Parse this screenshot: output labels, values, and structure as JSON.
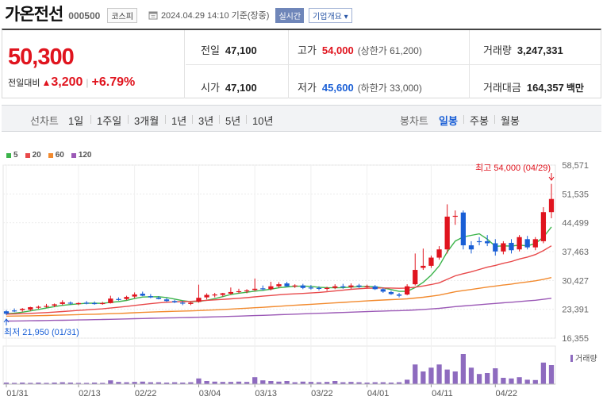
{
  "header": {
    "stock_name": "가온전선",
    "stock_code": "000500",
    "market": "코스피",
    "date": "2024.04.29 14:10 기준(장중)",
    "realtime_label": "실시간",
    "overview_label": "기업개요"
  },
  "price": {
    "current": "50,300",
    "change_label": "전일대비",
    "change": "3,200",
    "change_pct": "+6.79%"
  },
  "summary": {
    "prev_close": {
      "label": "전일",
      "value": "47,100"
    },
    "high": {
      "label": "고가",
      "value": "54,000",
      "sub": "(상한가 61,200)"
    },
    "volume": {
      "label": "거래량",
      "value": "3,247,331"
    },
    "open": {
      "label": "시가",
      "value": "47,100"
    },
    "low": {
      "label": "저가",
      "value": "45,600",
      "sub": "(하한가 33,000)"
    },
    "amount": {
      "label": "거래대금",
      "value": "164,357",
      "unit": "백만"
    }
  },
  "period_tabs": {
    "line_chart": "선차트",
    "line_items": [
      "1일",
      "1주일",
      "3개월",
      "1년",
      "3년",
      "5년",
      "10년"
    ],
    "candle_chart": "봉차트",
    "candle_items": [
      "일봉",
      "주봉",
      "월봉"
    ],
    "selected_candle": "일봉"
  },
  "colors": {
    "up": "#e0141e",
    "down": "#1a5fd6",
    "ma5": "#3cb44b",
    "ma20": "#e8494a",
    "ma60": "#f28a2e",
    "ma120": "#9b59b6",
    "volume": "#8e6bbf"
  },
  "chart_data": {
    "type": "candlestick",
    "legend": [
      {
        "name": "5",
        "color": "#3cb44b"
      },
      {
        "name": "20",
        "color": "#e8494a"
      },
      {
        "name": "60",
        "color": "#f28a2e"
      },
      {
        "name": "120",
        "color": "#9b59b6"
      }
    ],
    "y_ticks": [
      "58,571",
      "51,535",
      "44,499",
      "37,463",
      "30,427",
      "23,391",
      "16,355"
    ],
    "ylim": [
      16355,
      58571
    ],
    "x_ticks": [
      "01/31",
      "02/13",
      "02/22",
      "03/04",
      "03/13",
      "03/22",
      "04/01",
      "04/11",
      "04/22"
    ],
    "annotations": {
      "high": "최고 54,000 (04/29)",
      "low": "최저 21,950 (01/31)"
    },
    "volume_label": "거래량",
    "candles": [
      {
        "o": 22900,
        "h": 23200,
        "l": 21950,
        "c": 22300
      },
      {
        "o": 23100,
        "h": 23600,
        "l": 22700,
        "c": 23000
      },
      {
        "o": 23200,
        "h": 23700,
        "l": 22800,
        "c": 23500
      },
      {
        "o": 23300,
        "h": 24000,
        "l": 23000,
        "c": 23900
      },
      {
        "o": 23900,
        "h": 24300,
        "l": 23500,
        "c": 24000
      },
      {
        "o": 24100,
        "h": 24700,
        "l": 23800,
        "c": 24200
      },
      {
        "o": 24300,
        "h": 24800,
        "l": 23900,
        "c": 24600
      },
      {
        "o": 24700,
        "h": 25600,
        "l": 24400,
        "c": 25100
      },
      {
        "o": 25000,
        "h": 25300,
        "l": 24500,
        "c": 24800
      },
      {
        "o": 24800,
        "h": 25100,
        "l": 24400,
        "c": 24900
      },
      {
        "o": 25000,
        "h": 25400,
        "l": 24600,
        "c": 24900
      },
      {
        "o": 24900,
        "h": 25300,
        "l": 24500,
        "c": 24700
      },
      {
        "o": 24800,
        "h": 25200,
        "l": 24500,
        "c": 24900
      },
      {
        "o": 24900,
        "h": 26700,
        "l": 24800,
        "c": 26000
      },
      {
        "o": 25900,
        "h": 26300,
        "l": 25500,
        "c": 25800
      },
      {
        "o": 25900,
        "h": 26700,
        "l": 25600,
        "c": 26400
      },
      {
        "o": 26500,
        "h": 27500,
        "l": 26100,
        "c": 27000
      },
      {
        "o": 27200,
        "h": 27700,
        "l": 26600,
        "c": 26700
      },
      {
        "o": 26600,
        "h": 27100,
        "l": 26100,
        "c": 26300
      },
      {
        "o": 26200,
        "h": 26600,
        "l": 25800,
        "c": 25900
      },
      {
        "o": 25800,
        "h": 26200,
        "l": 25200,
        "c": 25400
      },
      {
        "o": 25400,
        "h": 25700,
        "l": 24900,
        "c": 25100
      },
      {
        "o": 25000,
        "h": 25400,
        "l": 24400,
        "c": 24800
      },
      {
        "o": 24700,
        "h": 25200,
        "l": 24400,
        "c": 25000
      },
      {
        "o": 25200,
        "h": 29400,
        "l": 25000,
        "c": 26200
      },
      {
        "o": 26300,
        "h": 27300,
        "l": 25800,
        "c": 26900
      },
      {
        "o": 26800,
        "h": 27400,
        "l": 26300,
        "c": 27000
      },
      {
        "o": 26900,
        "h": 27400,
        "l": 26500,
        "c": 27300
      },
      {
        "o": 27200,
        "h": 28700,
        "l": 26900,
        "c": 27600
      },
      {
        "o": 27700,
        "h": 28400,
        "l": 27300,
        "c": 27800
      },
      {
        "o": 27800,
        "h": 28300,
        "l": 27300,
        "c": 28000
      },
      {
        "o": 28100,
        "h": 30900,
        "l": 27800,
        "c": 28400
      },
      {
        "o": 28500,
        "h": 29200,
        "l": 28000,
        "c": 28300
      },
      {
        "o": 28300,
        "h": 30100,
        "l": 28000,
        "c": 29000
      },
      {
        "o": 29000,
        "h": 30000,
        "l": 28600,
        "c": 29500
      },
      {
        "o": 29700,
        "h": 30100,
        "l": 28900,
        "c": 29000
      },
      {
        "o": 29000,
        "h": 29500,
        "l": 28600,
        "c": 29200
      },
      {
        "o": 29200,
        "h": 29600,
        "l": 28300,
        "c": 28600
      },
      {
        "o": 28700,
        "h": 29300,
        "l": 28200,
        "c": 28600
      },
      {
        "o": 28600,
        "h": 29000,
        "l": 28000,
        "c": 28400
      },
      {
        "o": 28400,
        "h": 28900,
        "l": 27900,
        "c": 28600
      },
      {
        "o": 28600,
        "h": 29500,
        "l": 28300,
        "c": 29000
      },
      {
        "o": 29000,
        "h": 29600,
        "l": 28400,
        "c": 28800
      },
      {
        "o": 28800,
        "h": 29700,
        "l": 28400,
        "c": 29200
      },
      {
        "o": 29200,
        "h": 29600,
        "l": 28600,
        "c": 28900
      },
      {
        "o": 28900,
        "h": 29400,
        "l": 28500,
        "c": 29000
      },
      {
        "o": 29000,
        "h": 29300,
        "l": 28100,
        "c": 28300
      },
      {
        "o": 28300,
        "h": 28600,
        "l": 27400,
        "c": 27700
      },
      {
        "o": 27600,
        "h": 27900,
        "l": 26900,
        "c": 27100
      },
      {
        "o": 27000,
        "h": 27400,
        "l": 26300,
        "c": 26700
      },
      {
        "o": 27000,
        "h": 29500,
        "l": 26800,
        "c": 29000
      },
      {
        "o": 29500,
        "h": 37000,
        "l": 29200,
        "c": 33000
      },
      {
        "o": 33500,
        "h": 38200,
        "l": 33000,
        "c": 34000
      },
      {
        "o": 34000,
        "h": 36500,
        "l": 33500,
        "c": 36000
      },
      {
        "o": 36000,
        "h": 38800,
        "l": 35500,
        "c": 38000
      },
      {
        "o": 38000,
        "h": 49000,
        "l": 37000,
        "c": 46000
      },
      {
        "o": 46000,
        "h": 47500,
        "l": 44000,
        "c": 46200
      },
      {
        "o": 47000,
        "h": 47500,
        "l": 38000,
        "c": 39000
      },
      {
        "o": 39000,
        "h": 40000,
        "l": 37000,
        "c": 38000
      },
      {
        "o": 40000,
        "h": 41000,
        "l": 39000,
        "c": 39800
      },
      {
        "o": 40000,
        "h": 41500,
        "l": 38800,
        "c": 39500
      },
      {
        "o": 39500,
        "h": 40500,
        "l": 36500,
        "c": 37500
      },
      {
        "o": 37500,
        "h": 40000,
        "l": 36800,
        "c": 39500
      },
      {
        "o": 39600,
        "h": 40500,
        "l": 37000,
        "c": 37800
      },
      {
        "o": 38000,
        "h": 41500,
        "l": 37500,
        "c": 41000
      },
      {
        "o": 40500,
        "h": 41300,
        "l": 38000,
        "c": 38500
      },
      {
        "o": 38500,
        "h": 41000,
        "l": 37800,
        "c": 40500
      },
      {
        "o": 40000,
        "h": 48300,
        "l": 39500,
        "c": 47100
      },
      {
        "o": 47100,
        "h": 54000,
        "l": 45600,
        "c": 50300
      }
    ],
    "volume": [
      0.05,
      0.04,
      0.05,
      0.04,
      0.05,
      0.04,
      0.05,
      0.06,
      0.05,
      0.04,
      0.04,
      0.05,
      0.04,
      0.12,
      0.07,
      0.06,
      0.07,
      0.08,
      0.06,
      0.06,
      0.05,
      0.06,
      0.05,
      0.06,
      0.18,
      0.1,
      0.08,
      0.07,
      0.07,
      0.08,
      0.07,
      0.22,
      0.12,
      0.1,
      0.08,
      0.1,
      0.06,
      0.08,
      0.07,
      0.06,
      0.07,
      0.1,
      0.06,
      0.07,
      0.06,
      0.05,
      0.06,
      0.06,
      0.05,
      0.06,
      0.14,
      0.62,
      0.4,
      0.52,
      0.62,
      0.46,
      0.4,
      0.95,
      0.52,
      0.32,
      0.35,
      0.5,
      0.2,
      0.18,
      0.22,
      0.14,
      0.13,
      0.68,
      0.6
    ]
  }
}
